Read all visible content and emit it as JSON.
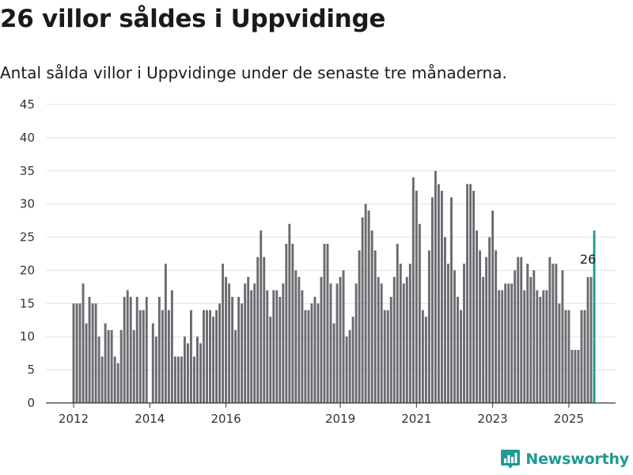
{
  "header": {
    "title": "26 villor såldes i Uppvidinge",
    "subtitle": "Antal sålda villor i Uppvidinge under de senaste tre månaderna."
  },
  "brand": {
    "name": "Newsworthy",
    "icon": "newsworthy-logo-icon"
  },
  "colors": {
    "bar": "#6b6a70",
    "highlight": "#1e9a93",
    "grid": "#e3e3e3",
    "axis": "#333333"
  },
  "chart_data": {
    "type": "bar",
    "title": "26 villor såldes i Uppvidinge",
    "subtitle": "Antal sålda villor i Uppvidinge under de senaste tre månaderna.",
    "xlabel": "",
    "ylabel": "",
    "ylim": [
      0,
      45
    ],
    "yticks": [
      0,
      5,
      10,
      15,
      20,
      25,
      30,
      35,
      40,
      45
    ],
    "grid": true,
    "legend": "none",
    "x_start": "2012-01",
    "x_end": "2025-07",
    "frequency": "monthly",
    "x_ticks": [
      {
        "label": "2012",
        "at": "2012-01"
      },
      {
        "label": "2014",
        "at": "2014-01"
      },
      {
        "label": "2016",
        "at": "2016-01"
      },
      {
        "label": "2019",
        "at": "2019-01"
      },
      {
        "label": "2021",
        "at": "2021-01"
      },
      {
        "label": "2023",
        "at": "2023-01"
      },
      {
        "label": "2025",
        "at": "2025-01"
      }
    ],
    "values": [
      15,
      15,
      15,
      18,
      12,
      16,
      15,
      15,
      10,
      7,
      12,
      11,
      11,
      7,
      6,
      11,
      16,
      17,
      16,
      11,
      16,
      14,
      14,
      16,
      0,
      12,
      10,
      16,
      14,
      21,
      14,
      17,
      7,
      7,
      7,
      10,
      9,
      14,
      7,
      10,
      9,
      14,
      14,
      14,
      13,
      14,
      15,
      21,
      19,
      18,
      16,
      11,
      16,
      15,
      18,
      19,
      17,
      18,
      22,
      26,
      22,
      17,
      13,
      17,
      17,
      16,
      18,
      24,
      27,
      24,
      20,
      19,
      17,
      14,
      14,
      15,
      16,
      15,
      19,
      24,
      24,
      18,
      12,
      18,
      19,
      20,
      10,
      11,
      13,
      18,
      23,
      28,
      30,
      29,
      26,
      23,
      19,
      18,
      14,
      14,
      16,
      19,
      24,
      21,
      18,
      19,
      21,
      34,
      32,
      27,
      14,
      13,
      23,
      31,
      35,
      33,
      32,
      25,
      21,
      31,
      20,
      16,
      14,
      21,
      33,
      33,
      32,
      26,
      23,
      19,
      22,
      25,
      29,
      23,
      17,
      17,
      18,
      18,
      18,
      20,
      22,
      22,
      17,
      21,
      19,
      20,
      17,
      16,
      17,
      17,
      22,
      21,
      21,
      15,
      20,
      14,
      14,
      8,
      8,
      8,
      14,
      14,
      19,
      19,
      26
    ],
    "highlight_last": true,
    "annotations": [
      {
        "at": "2025-07",
        "text": "26"
      }
    ]
  }
}
